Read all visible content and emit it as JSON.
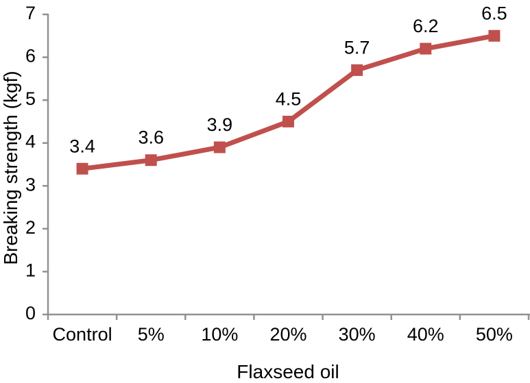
{
  "figure": {
    "background": "#ffffff"
  },
  "chart_data": {
    "type": "line",
    "title": "",
    "xlabel": "Flaxseed oil",
    "ylabel": "Breaking strength (kgf)",
    "categories": [
      "Control",
      "5%",
      "10%",
      "20%",
      "30%",
      "40%",
      "50%"
    ],
    "series": [
      {
        "name": "Breaking strength",
        "values": [
          3.4,
          3.6,
          3.9,
          4.5,
          5.7,
          6.2,
          6.5
        ],
        "data_labels": [
          "3.4",
          "3.6",
          "3.9",
          "4.5",
          "5.7",
          "6.2",
          "6.5"
        ],
        "color": "#C0504D",
        "marker": "square"
      }
    ],
    "ylim": [
      0,
      7
    ],
    "yticks": [
      0,
      1,
      2,
      3,
      4,
      5,
      6,
      7
    ],
    "grid": false,
    "legend": false,
    "axis_color": "#919191",
    "text_color": "#000000"
  }
}
